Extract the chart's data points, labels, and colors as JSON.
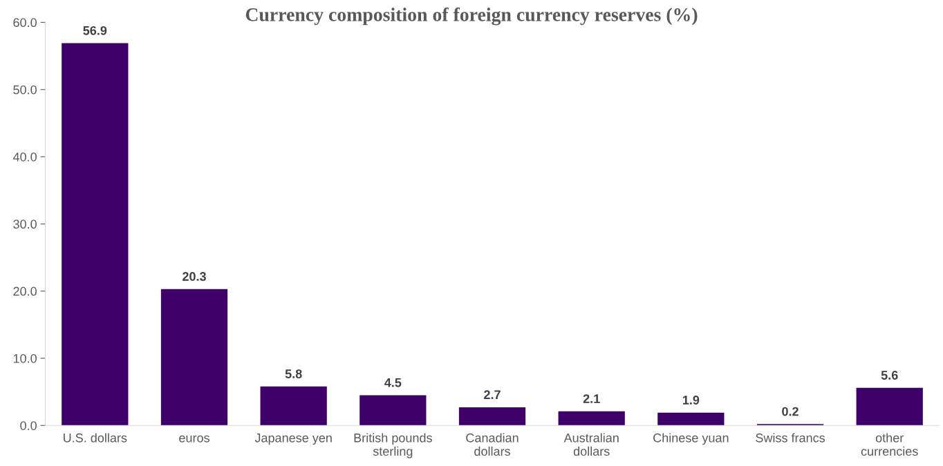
{
  "chart_data": {
    "type": "bar",
    "title": "Currency composition of foreign currency reserves (%)",
    "categories": [
      "U.S. dollars",
      "euros",
      "Japanese yen",
      "British pounds\nsterling",
      "Canadian\ndollars",
      "Australian\ndollars",
      "Chinese yuan",
      "Swiss francs",
      "other\ncurrencies"
    ],
    "values": [
      56.9,
      20.3,
      5.8,
      4.5,
      2.7,
      2.1,
      1.9,
      0.2,
      5.6
    ],
    "color": "#3d0069",
    "ylim": [
      0,
      60
    ],
    "yticks": [
      {
        "value": 0,
        "label": "0.0"
      },
      {
        "value": 10,
        "label": "10.0"
      },
      {
        "value": 20,
        "label": "20.0"
      },
      {
        "value": 30,
        "label": "30.0"
      },
      {
        "value": 40,
        "label": "40.0"
      },
      {
        "value": 50,
        "label": "50.0"
      },
      {
        "value": 60,
        "label": "60.0"
      }
    ],
    "grid": false,
    "legend": false,
    "data_labels": true
  }
}
